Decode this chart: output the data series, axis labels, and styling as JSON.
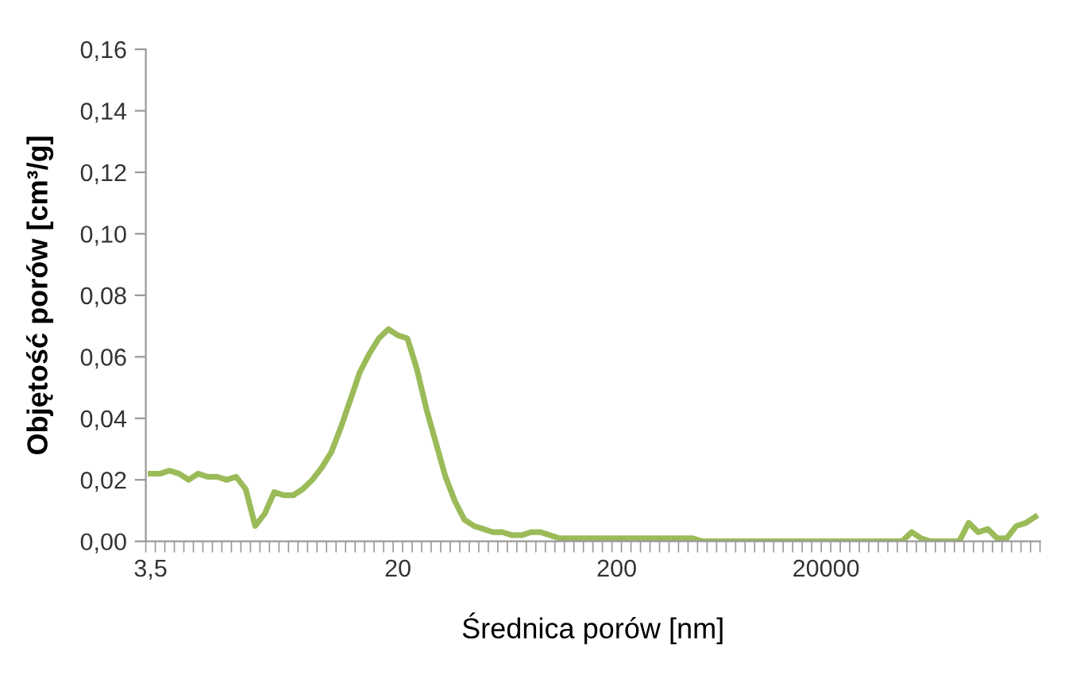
{
  "chart_data": {
    "type": "line",
    "xlabel": "Średnica porów [nm]",
    "ylabel": "Objętość porów [cm³/g]",
    "categories": [
      "3,5",
      null,
      null,
      null,
      null,
      null,
      null,
      null,
      null,
      null,
      null,
      null,
      null,
      null,
      null,
      null,
      null,
      null,
      null,
      null,
      null,
      null,
      null,
      null,
      null,
      null,
      "20",
      null,
      null,
      null,
      null,
      null,
      null,
      null,
      null,
      null,
      null,
      null,
      null,
      null,
      null,
      null,
      null,
      null,
      null,
      null,
      null,
      null,
      null,
      "200",
      null,
      null,
      null,
      null,
      null,
      null,
      null,
      null,
      null,
      null,
      null,
      null,
      null,
      null,
      null,
      null,
      null,
      null,
      null,
      null,
      null,
      "20000",
      null,
      null,
      null,
      null,
      null,
      null,
      null,
      null,
      null,
      null,
      null,
      null,
      null,
      null,
      null,
      null,
      null,
      null,
      null,
      null,
      null,
      null
    ],
    "series": [
      {
        "color": "#9bbb59",
        "values": [
          0.022,
          0.022,
          0.023,
          0.022,
          0.02,
          0.022,
          0.021,
          0.021,
          0.02,
          0.021,
          0.017,
          0.005,
          0.009,
          0.016,
          0.015,
          0.015,
          0.017,
          0.02,
          0.024,
          0.029,
          0.037,
          0.046,
          0.055,
          0.061,
          0.066,
          0.069,
          0.067,
          0.066,
          0.056,
          0.043,
          0.032,
          0.021,
          0.013,
          0.007,
          0.005,
          0.004,
          0.003,
          0.003,
          0.002,
          0.002,
          0.003,
          0.003,
          0.002,
          0.001,
          0.001,
          0.001,
          0.001,
          0.001,
          0.001,
          0.001,
          0.001,
          0.001,
          0.001,
          0.001,
          0.001,
          0.001,
          0.001,
          0.001,
          0,
          0,
          0,
          0,
          0,
          0,
          0,
          0,
          0,
          0,
          0,
          0,
          0,
          0,
          0,
          0,
          0,
          0,
          0,
          0,
          0,
          0,
          0.003,
          0.001,
          0,
          0,
          0,
          0,
          0.006,
          0.003,
          0.004,
          0.001,
          0.001,
          0.005,
          0.006,
          0.008
        ]
      }
    ],
    "ylim": [
      0,
      0.16
    ],
    "yticks": [
      {
        "value": 0,
        "label": "0,00"
      },
      {
        "value": 0.02,
        "label": "0,02"
      },
      {
        "value": 0.04,
        "label": "0,04"
      },
      {
        "value": 0.06,
        "label": "0,06"
      },
      {
        "value": 0.08,
        "label": "0,08"
      },
      {
        "value": 0.1,
        "label": "0,10"
      },
      {
        "value": 0.12,
        "label": "0,12"
      },
      {
        "value": 0.14,
        "label": "0,14"
      },
      {
        "value": 0.16,
        "label": "0,16"
      }
    ],
    "grid": false,
    "legend": false,
    "marker": "none",
    "line_style": "solid"
  }
}
